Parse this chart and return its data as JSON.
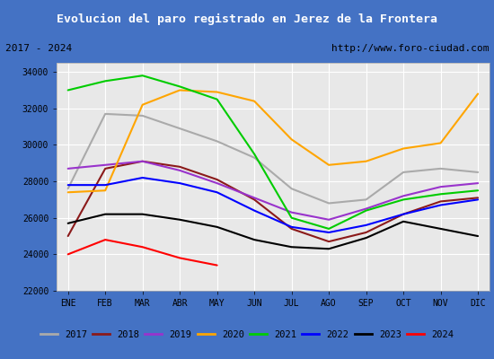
{
  "title": "Evolucion del paro registrado en Jerez de la Frontera",
  "subtitle_left": "2017 - 2024",
  "subtitle_right": "http://www.foro-ciudad.com",
  "title_bg": "#4472c4",
  "months": [
    "ENE",
    "FEB",
    "MAR",
    "ABR",
    "MAY",
    "JUN",
    "JUL",
    "AGO",
    "SEP",
    "OCT",
    "NOV",
    "DIC"
  ],
  "ylim": [
    22000,
    34500
  ],
  "yticks": [
    22000,
    24000,
    26000,
    28000,
    30000,
    32000,
    34000
  ],
  "series": {
    "2017": {
      "color": "#aaaaaa",
      "values": [
        27600,
        31700,
        31600,
        30900,
        30200,
        29300,
        27600,
        26800,
        27000,
        28500,
        28700,
        28500
      ]
    },
    "2018": {
      "color": "#8B1a1a",
      "values": [
        25000,
        28700,
        29100,
        28800,
        28100,
        27000,
        25400,
        24700,
        25200,
        26200,
        26900,
        27100
      ]
    },
    "2019": {
      "color": "#9933cc",
      "values": [
        28700,
        28900,
        29100,
        28600,
        27900,
        27100,
        26300,
        25900,
        26500,
        27200,
        27700,
        27900
      ]
    },
    "2020": {
      "color": "#ffa500",
      "values": [
        27400,
        27500,
        32200,
        33000,
        32900,
        32400,
        30300,
        28900,
        29100,
        29800,
        30100,
        32800
      ]
    },
    "2021": {
      "color": "#00cc00",
      "values": [
        33000,
        33500,
        33800,
        33200,
        32500,
        29500,
        26000,
        25400,
        26400,
        27000,
        27300,
        27500
      ]
    },
    "2022": {
      "color": "#0000ff",
      "values": [
        27800,
        27800,
        28200,
        27900,
        27400,
        26400,
        25500,
        25200,
        25600,
        26200,
        26700,
        27000
      ]
    },
    "2023": {
      "color": "#000000",
      "values": [
        25700,
        26200,
        26200,
        25900,
        25500,
        24800,
        24400,
        24300,
        24900,
        25800,
        25400,
        25000
      ]
    },
    "2024": {
      "color": "#ff0000",
      "values": [
        24000,
        24800,
        24400,
        23800,
        23400,
        null,
        null,
        null,
        null,
        null,
        null,
        null
      ]
    }
  }
}
